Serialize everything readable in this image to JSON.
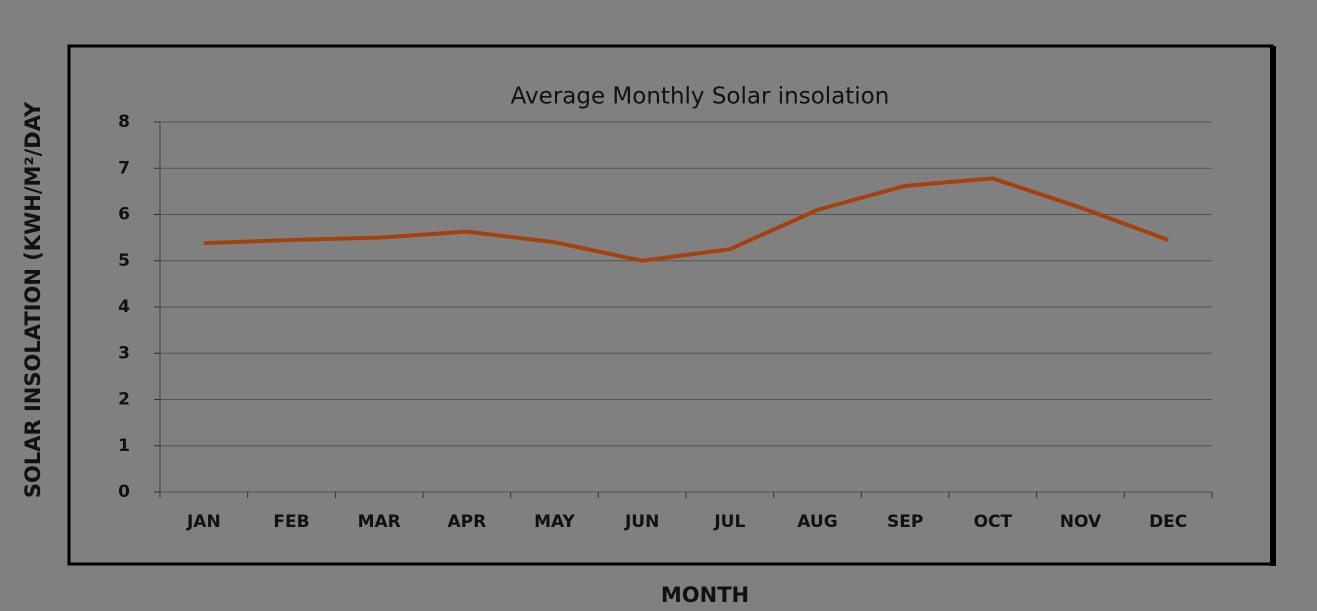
{
  "chart_data": {
    "type": "line",
    "title": "Average Monthly Solar insolation",
    "x_label": "MONTH",
    "y_label": "SOLAR INSOLATION (KWH/M²/DAY",
    "categories": [
      "JAN",
      "FEB",
      "MAR",
      "APR",
      "MAY",
      "JUN",
      "JUL",
      "AUG",
      "SEP",
      "OCT",
      "NOV",
      "DEC"
    ],
    "series": [
      {
        "name": "Solar insolation",
        "color": "#a3420f",
        "values": [
          5.38,
          5.45,
          5.5,
          5.63,
          5.4,
          5.0,
          5.25,
          6.1,
          6.62,
          6.78,
          6.15,
          5.45
        ]
      }
    ],
    "ylim": [
      0,
      8
    ],
    "yticks": [
      0,
      1,
      2,
      3,
      4,
      5,
      6,
      7,
      8
    ],
    "grid": true
  }
}
